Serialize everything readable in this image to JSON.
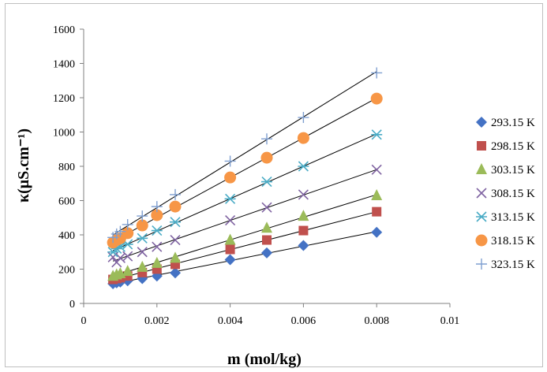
{
  "chart_data": {
    "type": "scatter",
    "xlabel": "m (mol/kg)",
    "ylabel": "κ(μS.cm⁻¹)",
    "xlim": [
      0,
      0.01
    ],
    "ylim": [
      0,
      1600
    ],
    "xticks": [
      "0",
      "0.002",
      "0.004",
      "0.006",
      "0.008",
      "0.01"
    ],
    "yticks": [
      "0",
      "200",
      "400",
      "600",
      "800",
      "1000",
      "1200",
      "1400",
      "1600"
    ],
    "grid": false,
    "legend": "right",
    "trendlines": true,
    "x": [
      0.0008,
      0.0009,
      0.001,
      0.0012,
      0.0016,
      0.002,
      0.0025,
      0.004,
      0.005,
      0.006,
      0.008
    ],
    "series": [
      {
        "name": "293.15 K",
        "marker": "diamond",
        "color": "#4472C4",
        "values": [
          115,
          120,
          125,
          132,
          145,
          160,
          178,
          255,
          295,
          338,
          415
        ]
      },
      {
        "name": "298.15 K",
        "marker": "square",
        "color": "#C0504D",
        "values": [
          140,
          145,
          150,
          160,
          180,
          200,
          228,
          315,
          370,
          425,
          535
        ]
      },
      {
        "name": "303.15 K",
        "marker": "triangle",
        "color": "#9BBB59",
        "values": [
          160,
          168,
          175,
          188,
          212,
          235,
          265,
          370,
          440,
          510,
          630
        ]
      },
      {
        "name": "308.15 K",
        "marker": "x",
        "color": "#8064A2",
        "values": [
          270,
          240,
          265,
          275,
          300,
          330,
          370,
          485,
          560,
          635,
          780
        ]
      },
      {
        "name": "313.15 K",
        "marker": "asterisk",
        "color": "#4BACC6",
        "values": [
          300,
          320,
          330,
          345,
          380,
          425,
          475,
          610,
          710,
          800,
          985
        ]
      },
      {
        "name": "318.15 K",
        "marker": "circle",
        "color": "#F79646",
        "values": [
          355,
          370,
          380,
          410,
          455,
          515,
          565,
          735,
          850,
          965,
          1195
        ]
      },
      {
        "name": "323.15 K",
        "marker": "plus",
        "color": "#7F9FD0",
        "values": [
          385,
          405,
          420,
          460,
          510,
          565,
          635,
          830,
          960,
          1085,
          1345
        ]
      }
    ]
  }
}
